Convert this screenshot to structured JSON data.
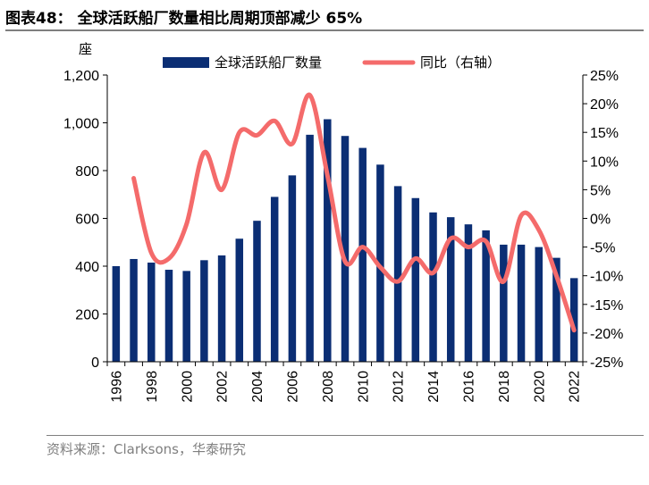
{
  "title": "图表48：  全球活跃船厂数量相比周期顶部减少 65%",
  "source": "资料来源：Clarksons，华泰研究",
  "chart_data": {
    "type": "bar+line",
    "unit_left": "座",
    "categories": [
      "1996",
      "1997",
      "1998",
      "1999",
      "2000",
      "2001",
      "2002",
      "2003",
      "2004",
      "2005",
      "2006",
      "2007",
      "2008",
      "2009",
      "2010",
      "2011",
      "2012",
      "2013",
      "2014",
      "2015",
      "2016",
      "2017",
      "2018",
      "2019",
      "2020",
      "2021",
      "2022"
    ],
    "x_tick_labels": [
      "1996",
      "1998",
      "2000",
      "2002",
      "2004",
      "2006",
      "2008",
      "2010",
      "2012",
      "2014",
      "2016",
      "2018",
      "2020",
      "2022"
    ],
    "series": [
      {
        "name": "全球活跃船厂数量",
        "type": "bar",
        "axis": "left",
        "color": "#0b2e74",
        "values": [
          400,
          430,
          415,
          385,
          380,
          425,
          445,
          515,
          590,
          690,
          780,
          950,
          1015,
          945,
          895,
          825,
          735,
          685,
          625,
          605,
          575,
          550,
          490,
          490,
          480,
          435,
          350
        ]
      },
      {
        "name": "同比（右轴）",
        "type": "line",
        "axis": "right",
        "color": "#f46b6b",
        "values": [
          null,
          7,
          -6,
          -7,
          -1,
          11.5,
          5,
          15,
          14.5,
          17,
          13,
          21.5,
          7.5,
          -7.5,
          -5,
          -8.5,
          -11,
          -7,
          -9.5,
          -3.5,
          -5,
          -4,
          -11,
          0.5,
          -2,
          -10,
          -19.5
        ]
      }
    ],
    "y_left": {
      "min": 0,
      "max": 1200,
      "step": 200,
      "tick_labels": [
        "0",
        "200",
        "400",
        "600",
        "800",
        "1,000",
        "1,200"
      ]
    },
    "y_right": {
      "min": -25,
      "max": 25,
      "step": 5,
      "tick_labels": [
        "-25%",
        "-20%",
        "-15%",
        "-10%",
        "-5%",
        "0%",
        "5%",
        "10%",
        "15%",
        "20%",
        "25%"
      ]
    },
    "legend_position": "top",
    "grid": false
  }
}
